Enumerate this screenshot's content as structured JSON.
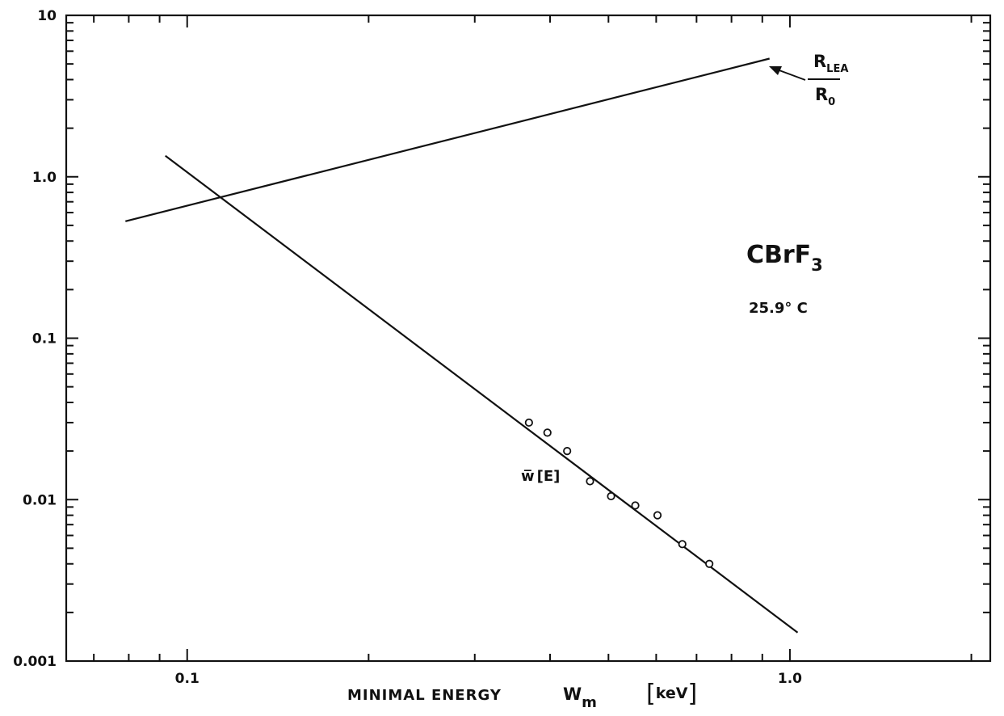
{
  "chart_data": {
    "type": "scatter",
    "title": "",
    "xlabel": {
      "text": "MINIMAL ENERGY",
      "symbol": "W",
      "symbol_sub": "m",
      "unit_open": "[",
      "unit": "keV",
      "unit_close": "]"
    },
    "ylabel": "",
    "x_scale": "log",
    "y_scale": "log",
    "xlim": [
      0.063,
      2.15
    ],
    "ylim": [
      0.001,
      10
    ],
    "x_ticks": [
      {
        "value": 0.1,
        "label": "0.1"
      },
      {
        "value": 1.0,
        "label": "1.0"
      }
    ],
    "y_ticks": [
      {
        "value": 10,
        "label": "10"
      },
      {
        "value": 1,
        "label": "1.0"
      },
      {
        "value": 0.1,
        "label": "0.1"
      },
      {
        "value": 0.01,
        "label": "0.01"
      },
      {
        "value": 0.001,
        "label": "0.001"
      }
    ],
    "grid": false,
    "series": [
      {
        "kind": "line",
        "label_parts": {
          "top": "R",
          "top_sub": "LEA",
          "bottom": "R",
          "bottom_sub": "0"
        },
        "x": [
          0.079,
          0.925
        ],
        "y": [
          0.53,
          5.4
        ]
      },
      {
        "kind": "line",
        "label_parts": {
          "symbol": "w̅",
          "arg": "[E]"
        },
        "x": [
          0.092,
          1.03
        ],
        "y": [
          1.35,
          0.0015
        ]
      },
      {
        "kind": "points",
        "label_parts": {
          "symbol": "w̅",
          "arg": "[E]"
        },
        "x": [
          0.369,
          0.396,
          0.427,
          0.466,
          0.505,
          0.554,
          0.603,
          0.663,
          0.735
        ],
        "y": [
          0.03,
          0.026,
          0.02,
          0.013,
          0.0105,
          0.0092,
          0.008,
          0.0053,
          0.004
        ]
      }
    ],
    "annotations": {
      "compound": {
        "base": "CBrF",
        "sub": "3"
      },
      "temperature": "25.9° C"
    }
  }
}
